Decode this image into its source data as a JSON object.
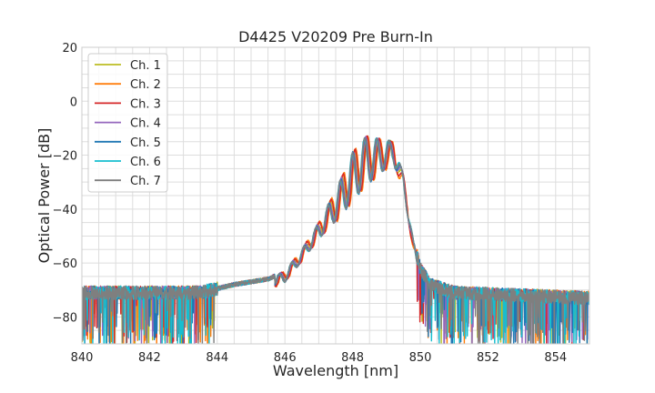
{
  "chart_data": {
    "type": "line",
    "title": "D4425 V20209 Pre Burn-In",
    "xlabel": "Wavelength [nm]",
    "ylabel": "Optical Power [dB]",
    "xlim": [
      840,
      855
    ],
    "ylim": [
      -90,
      20
    ],
    "xticks": [
      840,
      842,
      844,
      846,
      848,
      850,
      852,
      854
    ],
    "yticks": [
      20,
      0,
      -20,
      -40,
      -60,
      -80
    ],
    "x_minor_step": 0.5,
    "y_minor_step": 5,
    "grid": true,
    "legend_position": "upper-left",
    "series": [
      {
        "name": "Ch. 1",
        "color": "#bcbd22",
        "peak_shift": 0.0,
        "peak_scale": 0.98,
        "seed": 11
      },
      {
        "name": "Ch. 2",
        "color": "#ff7f0e",
        "peak_shift": 0.05,
        "peak_scale": 1.04,
        "seed": 23
      },
      {
        "name": "Ch. 3",
        "color": "#d62728",
        "peak_shift": 0.03,
        "peak_scale": 1.0,
        "seed": 37
      },
      {
        "name": "Ch. 4",
        "color": "#9467bd",
        "peak_shift": -0.02,
        "peak_scale": 0.99,
        "seed": 41
      },
      {
        "name": "Ch. 5",
        "color": "#1f77b4",
        "peak_shift": -0.04,
        "peak_scale": 1.01,
        "seed": 53
      },
      {
        "name": "Ch. 6",
        "color": "#17becf",
        "peak_shift": -0.06,
        "peak_scale": 0.97,
        "seed": 67
      },
      {
        "name": "Ch. 7",
        "color": "#7f7f7f",
        "peak_shift": -0.05,
        "peak_scale": 0.99,
        "seed": 79
      }
    ],
    "envelope": [
      [
        840.0,
        -71
      ],
      [
        843.5,
        -71
      ],
      [
        844.5,
        -68
      ],
      [
        845.5,
        -66
      ],
      [
        846.0,
        -63
      ],
      [
        846.5,
        -55
      ],
      [
        847.0,
        -45
      ],
      [
        847.5,
        -33
      ],
      [
        848.0,
        -19
      ],
      [
        848.4,
        -13
      ],
      [
        848.8,
        -14
      ],
      [
        849.2,
        -15
      ],
      [
        849.5,
        -27
      ],
      [
        849.8,
        -52
      ],
      [
        850.0,
        -62
      ],
      [
        850.3,
        -68
      ],
      [
        851.0,
        -71
      ],
      [
        855.0,
        -73
      ]
    ]
  }
}
